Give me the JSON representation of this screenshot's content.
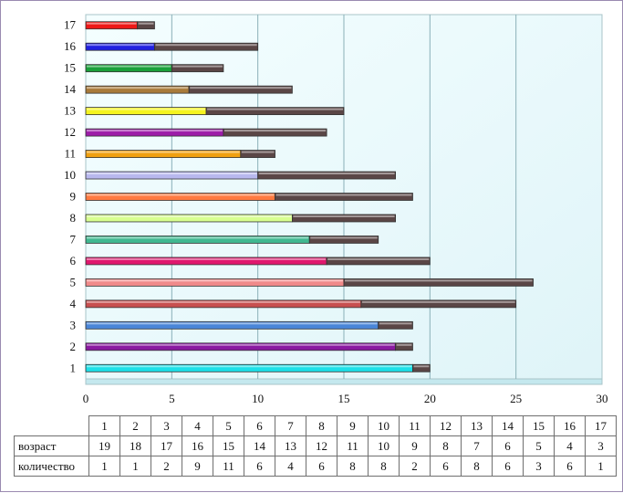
{
  "chart_data": {
    "type": "bar",
    "orientation": "horizontal",
    "stacked": true,
    "categories": [
      "1",
      "2",
      "3",
      "4",
      "5",
      "6",
      "7",
      "8",
      "9",
      "10",
      "11",
      "12",
      "13",
      "14",
      "15",
      "16",
      "17"
    ],
    "series": [
      {
        "name": "возраст",
        "values": [
          19,
          18,
          17,
          16,
          15,
          14,
          13,
          12,
          11,
          10,
          9,
          8,
          7,
          6,
          5,
          4,
          3
        ]
      },
      {
        "name": "количество",
        "values": [
          1,
          1,
          2,
          9,
          11,
          6,
          4,
          6,
          8,
          8,
          2,
          6,
          8,
          6,
          3,
          6,
          1
        ],
        "color": "#5a4646"
      }
    ],
    "bar_colors": [
      "#1ce0e8",
      "#8a1aa0",
      "#4a86d8",
      "#c85050",
      "#f08a8a",
      "#e0186e",
      "#40b890",
      "#d8ff90",
      "#ff7a40",
      "#b8b8ee",
      "#f0a010",
      "#9c1ca8",
      "#f4f420",
      "#a87a3a",
      "#1aa03a",
      "#2020e0",
      "#ee1818"
    ],
    "xlim": [
      0,
      30
    ],
    "xticks": [
      "0",
      "5",
      "10",
      "15",
      "20",
      "25",
      "30"
    ],
    "grid": true,
    "plot_background": "#e8fafc",
    "gridline_color": "#8ab0b8",
    "table": {
      "header": [
        "1",
        "2",
        "3",
        "4",
        "5",
        "6",
        "7",
        "8",
        "9",
        "10",
        "11",
        "12",
        "13",
        "14",
        "15",
        "16",
        "17"
      ],
      "row_labels": [
        "возраст",
        "количество"
      ]
    }
  }
}
